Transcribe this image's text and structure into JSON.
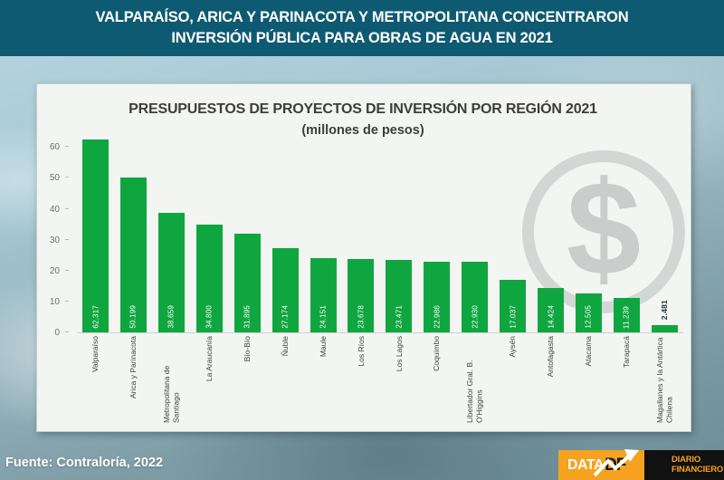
{
  "colors": {
    "header_bg": "#0e5a72",
    "card_bg": "#f3f5f3",
    "bar_green": "#10a63f",
    "chart_title_text": "#3d3d3d",
    "logo_orange": "#f5a21f",
    "logo_black": "#111111",
    "watermark_gray": "#b2b9b7"
  },
  "header": {
    "line1": "VALPARAÍSO, ARICA Y PARINACOTA Y METROPOLITANA CONCENTRARON",
    "line2": "INVERSIÓN PÚBLICA PARA OBRAS DE AGUA EN 2021"
  },
  "chart_data": {
    "type": "bar",
    "title": "PRESUPUESTOS DE PROYECTOS DE INVERSIÓN POR REGIÓN 2021",
    "subtitle": "(millones de pesos)",
    "categories": [
      "Valparaíso",
      "Arica y Parinacota",
      "Metropolitana de Santiago",
      "La Araucanía",
      "Bío-Bío",
      "Ñuble",
      "Maule",
      "Los Ríos",
      "Los Lagos",
      "Coquimbo",
      "Libertador Gral. B. O'Higgins",
      "Aysén",
      "Antofagasta",
      "Atacama",
      "Tarapacá",
      "Magallanes y la Antártica Chilena"
    ],
    "values": [
      62.317,
      50.199,
      38.659,
      34.8,
      31.895,
      27.174,
      24.151,
      23.678,
      23.471,
      22.986,
      22.93,
      17.037,
      14.424,
      12.505,
      11.239,
      2.481
    ],
    "value_labels": [
      "62.317",
      "50.199",
      "38.659",
      "34.800",
      "31.895",
      "27.174",
      "24.151",
      "23.678",
      "23.471",
      "22.986",
      "22.930",
      "17.037",
      "14.424",
      "12.505",
      "11.239",
      "2.481"
    ],
    "yticks": [
      0,
      10,
      20,
      30,
      40,
      50,
      60
    ],
    "ylim": [
      0,
      63
    ],
    "xlabel": "",
    "ylabel": "",
    "grid": false,
    "legend": "none",
    "watermark_symbol": "$"
  },
  "footer": {
    "source": "Fuente: Contraloría, 2022",
    "logo": {
      "data_label": "DATA",
      "df_label": "DF",
      "diario_line1": "DIARIO",
      "diario_line2": "FINANCIERO"
    }
  }
}
